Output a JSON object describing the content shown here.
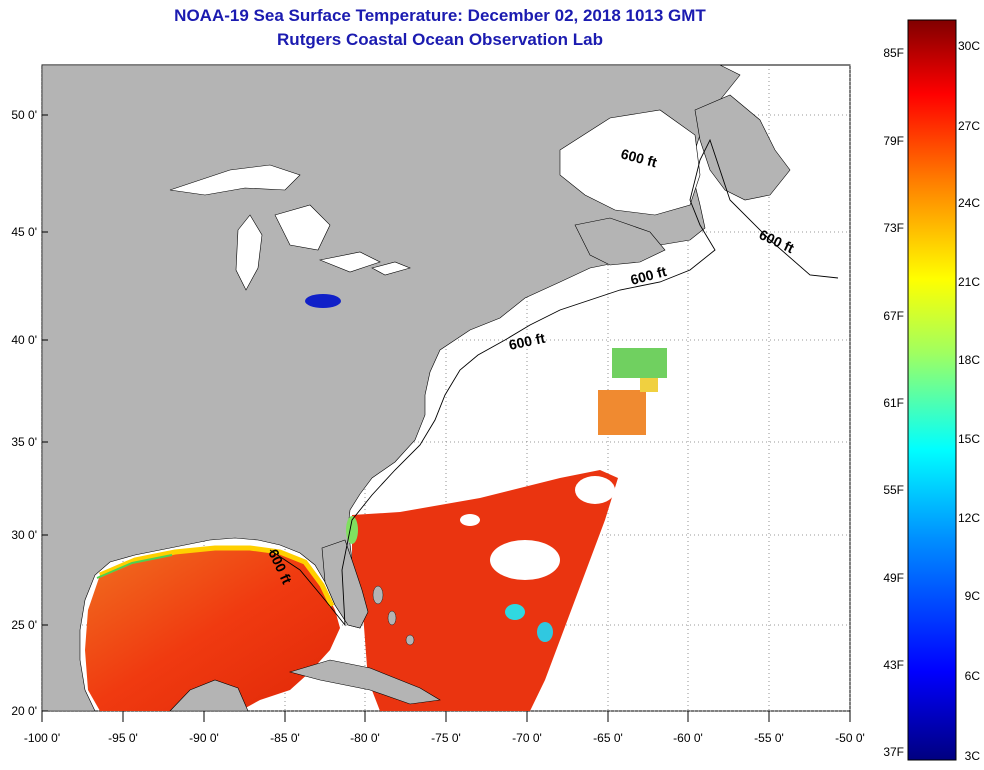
{
  "title": {
    "line1": "NOAA-19 Sea Surface Temperature:  December 02, 2018 1013 GMT",
    "line2": "Rutgers Coastal Ocean Observation Lab"
  },
  "map": {
    "lat_ticks": [
      "50 0'",
      "45 0'",
      "40 0'",
      "35 0'",
      "30 0'",
      "25 0'",
      "20 0'"
    ],
    "lon_ticks": [
      "-100 0'",
      "-95 0'",
      "-90 0'",
      "-85 0'",
      "-80 0'",
      "-75 0'",
      "-70 0'",
      "-65 0'",
      "-60 0'",
      "-55 0'",
      "-50 0'"
    ],
    "contour_labels": [
      "600 ft",
      "600 ft",
      "600 ft",
      "600 ft",
      "600 ft"
    ],
    "colors": {
      "land": "#b4b4b4",
      "water": "#ffffff",
      "gulf": "#e8421a"
    }
  },
  "colorbar": {
    "f_labels": [
      "85F",
      "79F",
      "73F",
      "67F",
      "61F",
      "55F",
      "49F",
      "43F",
      "37F"
    ],
    "c_labels": [
      "30C",
      "27C",
      "24C",
      "21C",
      "18C",
      "15C",
      "12C",
      "9C",
      "6C",
      "3C"
    ]
  }
}
